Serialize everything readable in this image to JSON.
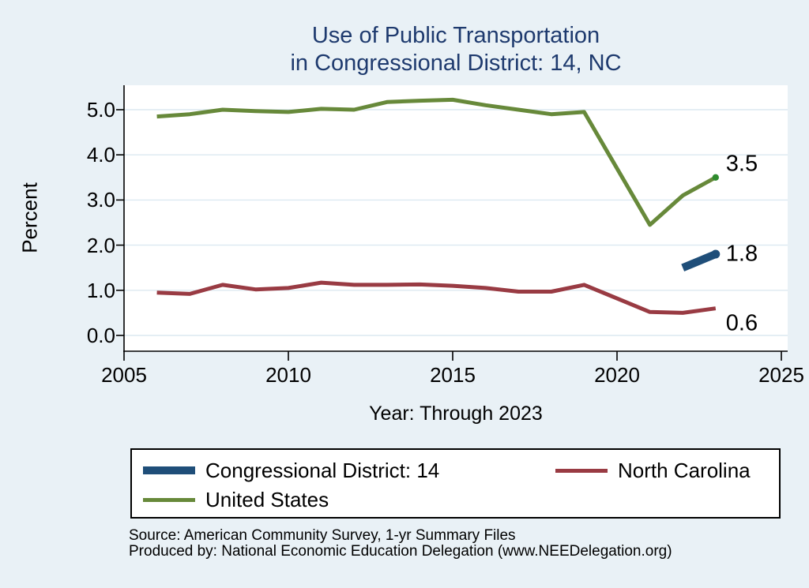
{
  "title": {
    "line1": "Use of Public Transportation",
    "line2": "in Congressional District: 14, NC"
  },
  "colors": {
    "background": "#e9f1f6",
    "plot_background": "#ffffff",
    "grid": "#dce9f1",
    "axis": "#000000",
    "title_text": "#1e3a6e",
    "tick_text": "#000000"
  },
  "chart_data": {
    "type": "line",
    "title": "Use of Public Transportation in Congressional District: 14, NC",
    "xlabel": "Year: Through 2023",
    "ylabel": "Percent",
    "xlim": [
      2005,
      2025
    ],
    "ylim": [
      0,
      5
    ],
    "grid": "horizontal",
    "legend_position": "bottom",
    "x_ticks": {
      "values": [
        2005,
        2010,
        2015,
        2020,
        2025
      ],
      "labels": [
        "2005",
        "2010",
        "2015",
        "2020",
        "2025"
      ]
    },
    "y_ticks": {
      "values": [
        0,
        1,
        2,
        3,
        4,
        5
      ],
      "labels": [
        "0.0",
        "1.0",
        "2.0",
        "3.0",
        "4.0",
        "5.0"
      ]
    },
    "series": [
      {
        "name": "Congressional District: 14",
        "color": "#1f4e79",
        "line_width": 10,
        "x": [
          2022,
          2023
        ],
        "values": [
          1.5,
          1.8
        ],
        "end_label": "1.8",
        "end_dot": true,
        "end_dot_color": "#1f4e79"
      },
      {
        "name": "North Carolina",
        "color": "#993b43",
        "line_width": 5,
        "x": [
          2006,
          2007,
          2008,
          2009,
          2010,
          2011,
          2012,
          2013,
          2014,
          2015,
          2016,
          2017,
          2018,
          2019,
          2021,
          2022,
          2023
        ],
        "values": [
          0.95,
          0.92,
          1.12,
          1.02,
          1.05,
          1.17,
          1.12,
          1.12,
          1.13,
          1.1,
          1.05,
          0.97,
          0.97,
          1.12,
          0.52,
          0.5,
          0.6
        ],
        "end_label": "0.6",
        "end_dot": false,
        "end_dot_color": ""
      },
      {
        "name": "United States",
        "color": "#67893a",
        "line_width": 5,
        "x": [
          2006,
          2007,
          2008,
          2009,
          2010,
          2011,
          2012,
          2013,
          2014,
          2015,
          2016,
          2017,
          2018,
          2019,
          2021,
          2022,
          2023
        ],
        "values": [
          4.85,
          4.9,
          5.0,
          4.97,
          4.95,
          5.02,
          5.0,
          5.17,
          5.2,
          5.22,
          5.1,
          5.0,
          4.9,
          4.95,
          2.45,
          3.1,
          3.5
        ],
        "end_label": "3.5",
        "end_dot": true,
        "end_dot_color": "#2e8b2e"
      }
    ]
  },
  "source": {
    "line1": "Source: American Community Survey, 1-yr Summary Files",
    "line2": "Produced by: National Economic Education Delegation (www.NEEDelegation.org)"
  }
}
